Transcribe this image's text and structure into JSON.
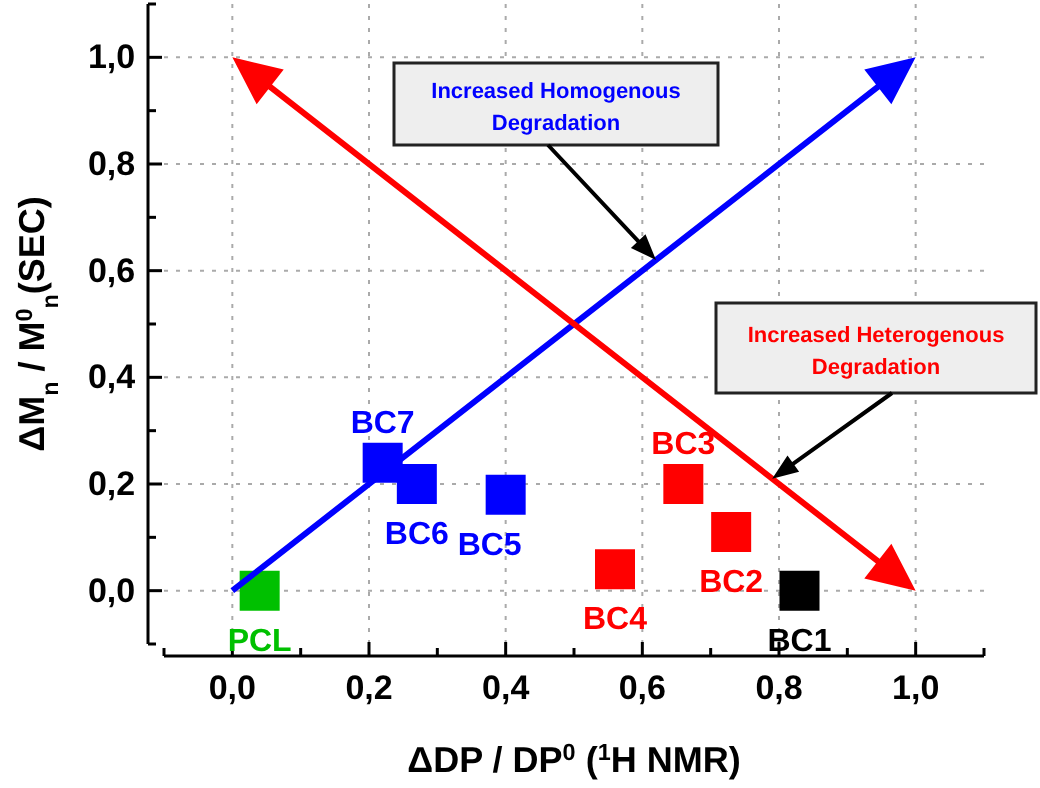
{
  "chart_data": {
    "type": "scatter",
    "xlabel": "ΔDP / DP$^{0}$ ($^{1}$H NMR)",
    "ylabel": "ΔM$_{n}$ / M$^{0}$$_{n}$(SEC)",
    "xlim": [
      -0.1,
      1.1
    ],
    "ylim": [
      -0.1,
      1.1
    ],
    "xticks": [
      {
        "value": -0.1,
        "label": null
      },
      {
        "value": 0,
        "label": "0,0"
      },
      {
        "value": 0.1,
        "label": null
      },
      {
        "value": 0.2,
        "label": "0,2"
      },
      {
        "value": 0.3,
        "label": null
      },
      {
        "value": 0.4,
        "label": "0,4"
      },
      {
        "value": 0.5,
        "label": null
      },
      {
        "value": 0.6,
        "label": "0,6"
      },
      {
        "value": 0.7,
        "label": null
      },
      {
        "value": 0.8,
        "label": "0,8"
      },
      {
        "value": 0.9,
        "label": null
      },
      {
        "value": 1,
        "label": "1,0"
      },
      {
        "value": 1.1,
        "label": null
      }
    ],
    "yticks": [
      {
        "value": -0.1,
        "label": null
      },
      {
        "value": 0,
        "label": "0,0"
      },
      {
        "value": 0.1,
        "label": null
      },
      {
        "value": 0.2,
        "label": "0,2"
      },
      {
        "value": 0.3,
        "label": null
      },
      {
        "value": 0.4,
        "label": "0,4"
      },
      {
        "value": 0.5,
        "label": null
      },
      {
        "value": 0.6,
        "label": "0,6"
      },
      {
        "value": 0.7,
        "label": null
      },
      {
        "value": 0.8,
        "label": "0,8"
      },
      {
        "value": 0.9,
        "label": null
      },
      {
        "value": 1,
        "label": "1,0"
      },
      {
        "value": 1.1,
        "label": null
      }
    ],
    "grid": true,
    "marker": "square",
    "series": [
      {
        "name": "PCL",
        "color": "#00c000",
        "x": [
          0.04
        ],
        "values": [
          0.0
        ]
      },
      {
        "name": "BC7",
        "color": "#0000ff",
        "x": [
          0.22
        ],
        "values": [
          0.24
        ]
      },
      {
        "name": "BC6",
        "color": "#0000ff",
        "x": [
          0.27
        ],
        "values": [
          0.2
        ]
      },
      {
        "name": "BC5",
        "color": "#0000ff",
        "x": [
          0.4
        ],
        "values": [
          0.18
        ]
      },
      {
        "name": "BC4",
        "color": "#ff0000",
        "x": [
          0.56
        ],
        "values": [
          0.04
        ]
      },
      {
        "name": "BC3",
        "color": "#ff0000",
        "x": [
          0.66
        ],
        "values": [
          0.2
        ]
      },
      {
        "name": "BC2",
        "color": "#ff0000",
        "x": [
          0.73
        ],
        "values": [
          0.11
        ]
      },
      {
        "name": "BC1",
        "color": "#000000",
        "x": [
          0.83
        ],
        "values": [
          0.0
        ]
      }
    ],
    "annotations": [
      "Increased Homogenous Degradation",
      "Increased Heterogenous Degradation"
    ]
  }
}
